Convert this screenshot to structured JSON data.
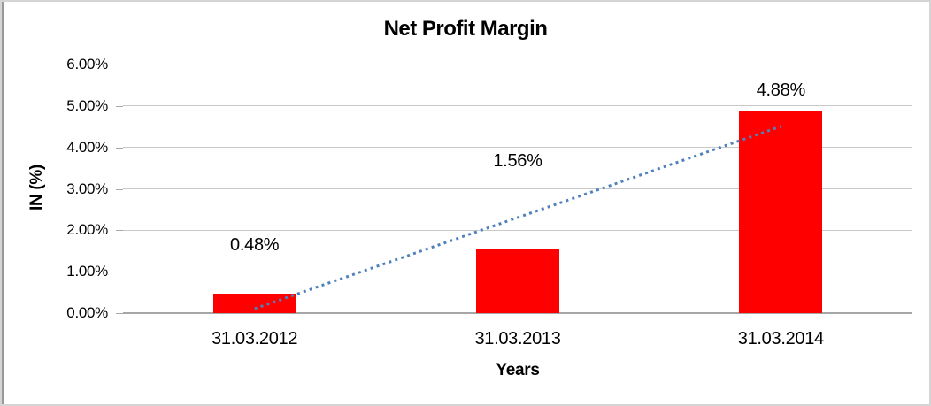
{
  "chart_data": {
    "type": "bar",
    "title": "Net Profit Margin",
    "xlabel": "Years",
    "ylabel": "IN (%)",
    "categories": [
      "31.03.2012",
      "31.03.2013",
      "31.03.2014"
    ],
    "series": [
      {
        "name": "Net Profit Margin",
        "values": [
          0.48,
          1.56,
          4.88
        ],
        "data_labels": [
          "0.48%",
          "1.56%",
          "4.88%"
        ],
        "color": "#FF0000"
      }
    ],
    "yticks": [
      "0.00%",
      "1.00%",
      "2.00%",
      "3.00%",
      "4.00%",
      "5.00%",
      "6.00%"
    ],
    "ytick_values": [
      0,
      1,
      2,
      3,
      4,
      5,
      6
    ],
    "ylim": [
      0,
      6
    ],
    "grid": true,
    "legend": "none",
    "trendline": {
      "type": "linear",
      "style": "dotted",
      "color": "#4F81BD",
      "span_categories": [
        "31.03.2012",
        "31.03.2014"
      ]
    },
    "colors": {
      "bar": "#FF0000",
      "trendline": "#4F81BD",
      "gridline": "#C9C9C9",
      "axis_line": "#A6A6A6",
      "text": "#000000",
      "background": "#FFFFFF"
    }
  }
}
